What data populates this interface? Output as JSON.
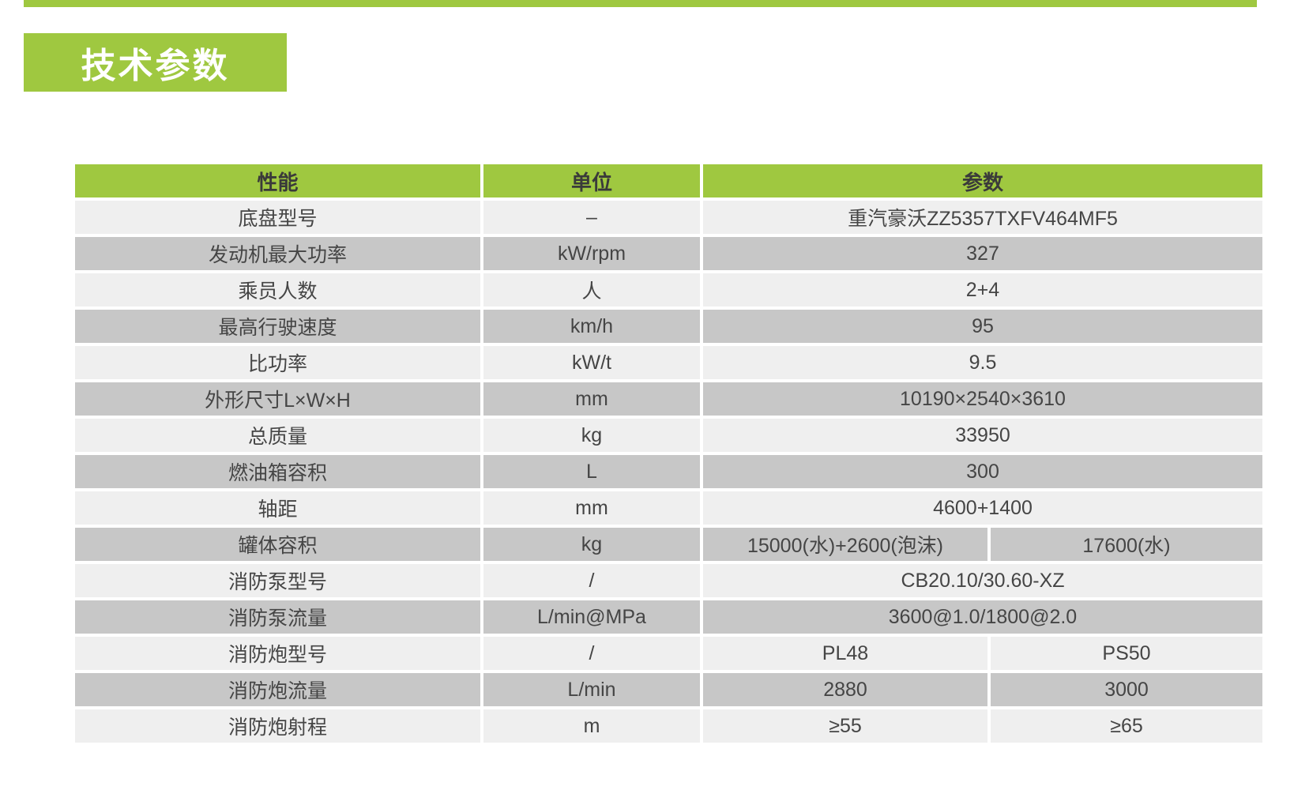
{
  "page_title": "技术参数",
  "colors": {
    "accent_green": "#9fc840",
    "row_light": "#efefef",
    "row_dark": "#c7c7c7",
    "text": "#454545"
  },
  "table": {
    "headers": [
      "性能",
      "单位",
      "参数"
    ],
    "rows": [
      {
        "name": "底盘型号",
        "unit": "–",
        "value": "重汽豪沃ZZ5357TXFV464MF5"
      },
      {
        "name": "发动机最大功率",
        "unit": "kW/rpm",
        "value": "327"
      },
      {
        "name": "乘员人数",
        "unit": "人",
        "value": "2+4"
      },
      {
        "name": "最高行驶速度",
        "unit": "km/h",
        "value": "95"
      },
      {
        "name": "比功率",
        "unit": "kW/t",
        "value": "9.5"
      },
      {
        "name": "外形尺寸L×W×H",
        "unit": "mm",
        "value": "10190×2540×3610"
      },
      {
        "name": "总质量",
        "unit": "kg",
        "value": "33950"
      },
      {
        "name": "燃油箱容积",
        "unit": "L",
        "value": "300"
      },
      {
        "name": "轴距",
        "unit": "mm",
        "value": "4600+1400"
      },
      {
        "name": "罐体容积",
        "unit": "kg",
        "value": [
          "15000(水)+2600(泡沫)",
          "17600(水)"
        ]
      },
      {
        "name": "消防泵型号",
        "unit": "/",
        "value": "CB20.10/30.60-XZ"
      },
      {
        "name": "消防泵流量",
        "unit": "L/min@MPa",
        "value": "3600@1.0/1800@2.0"
      },
      {
        "name": "消防炮型号",
        "unit": "/",
        "value": [
          "PL48",
          "PS50"
        ]
      },
      {
        "name": "消防炮流量",
        "unit": "L/min",
        "value": [
          "2880",
          "3000"
        ]
      },
      {
        "name": "消防炮射程",
        "unit": "m",
        "value": [
          "≥55",
          "≥65"
        ]
      }
    ]
  }
}
